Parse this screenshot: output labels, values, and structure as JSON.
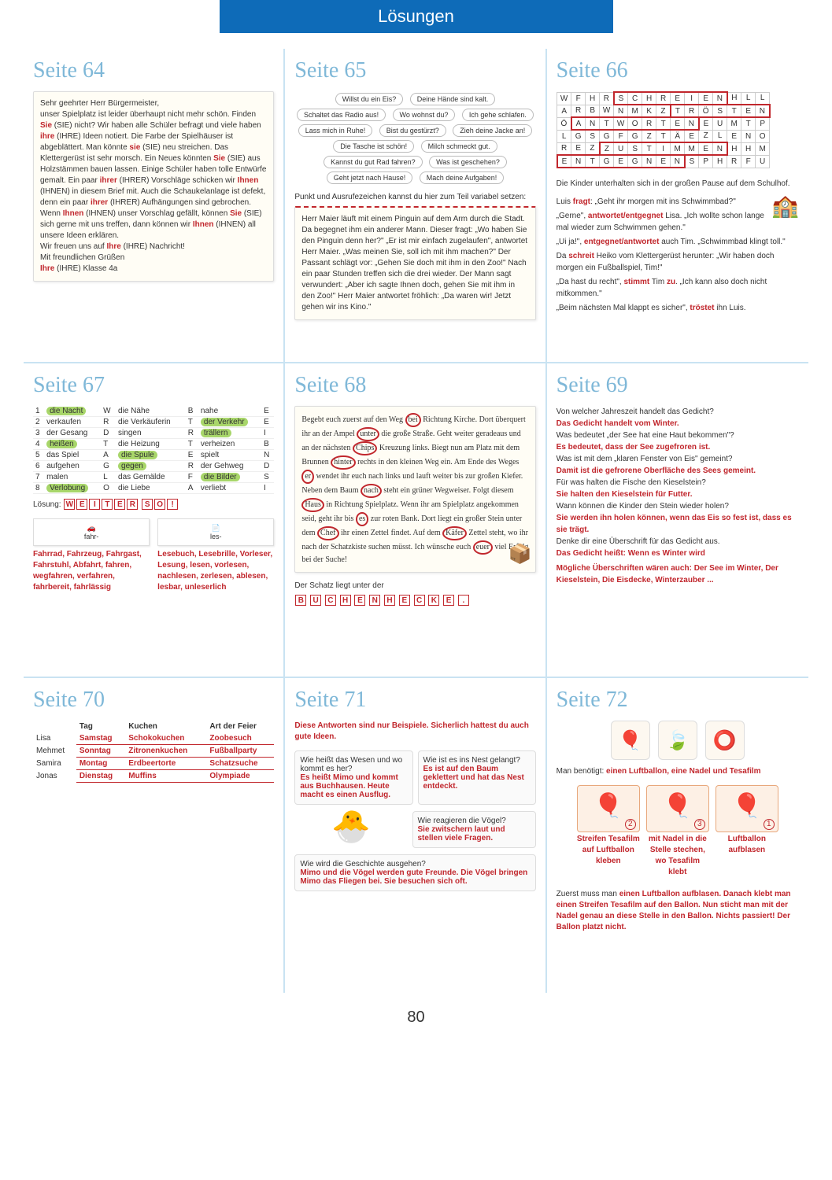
{
  "header": "Lösungen",
  "pageNum": "80",
  "p64": {
    "title": "Seite 64",
    "letter": "Sehr geehrter Herr Bürgermeister,\nunser Spielplatz ist leider überhaupt nicht mehr schön. Finden <r>Sie</r> (SIE) nicht? Wir haben alle Schüler befragt und viele haben <r>ihre</r> (IHRE) Ideen notiert. Die Farbe der Spielhäuser ist abgeblättert. Man könnte <r>sie</r> (SIE) neu streichen. Das Klettergerüst ist sehr morsch. Ein Neues könnten <r>Sie</r> (SIE) aus Holzstämmen bauen lassen. Einige Schüler haben tolle Entwürfe gemalt. Ein paar <r>ihrer</r> (IHRER) Vorschläge schicken wir <r>Ihnen</r> (IHNEN) in diesem Brief mit. Auch die Schaukelanlage ist defekt, denn ein paar <r>ihrer</r> (IHRER) Aufhängungen sind gebrochen. Wenn <r>Ihnen</r> (IHNEN) unser Vorschlag gefällt, können <r>Sie</r> (SIE) sich gerne mit uns treffen, dann können wir <r>Ihnen</r> (IHNEN) all unsere Ideen erklären.\nWir freuen uns auf <r>Ihre</r> (IHRE) Nachricht!\nMit freundlichen Grüßen\n<r>Ihre</r> (IHRE) Klasse 4a"
  },
  "p65": {
    "title": "Seite 65",
    "bubbles": [
      "Willst du ein Eis?",
      "Deine Hände sind kalt.",
      "Schaltet das Radio aus!",
      "Wo wohnst du?",
      "Ich gehe schlafen.",
      "Lass mich in Ruhe!",
      "Bist du gestürzt?",
      "Zieh deine Jacke an!",
      "Die Tasche ist schön!",
      "Milch schmeckt gut.",
      "Kannst du gut Rad fahren?",
      "Was ist geschehen?",
      "Geht jetzt nach Hause!",
      "Mach deine Aufgaben!"
    ],
    "hint": "Punkt und Ausrufezeichen kannst du hier zum Teil variabel setzen:",
    "story": "Herr Maier läuft mit einem Pinguin auf dem Arm durch die Stadt. Da begegnet ihm ein anderer Mann. Dieser fragt: „Wo haben Sie den Pinguin denn her?\" „Er ist mir einfach zugelaufen\", antwortet Herr Maier. „Was meinen Sie, soll ich mit ihm machen?\" Der Passant schlägt vor: „Gehen Sie doch mit ihm in den Zoo!\" Nach ein paar Stunden treffen sich die drei wieder. Der Mann sagt verwundert: „Aber ich sagte Ihnen doch, gehen Sie mit ihm in den Zoo!\" Herr Maier antwortet fröhlich: „Da waren wir! Jetzt gehen wir ins Kino.\""
  },
  "p66": {
    "title": "Seite 66",
    "grid": [
      [
        "W",
        "F",
        "H",
        "R",
        "S",
        "C",
        "H",
        "R",
        "E",
        "I",
        "E",
        "N",
        "H",
        "L",
        "L"
      ],
      [
        "A",
        "R",
        "B",
        "W",
        "N",
        "M",
        "K",
        "Z",
        "T",
        "R",
        "Ö",
        "S",
        "T",
        "E",
        "N"
      ],
      [
        "Ö",
        "A",
        "N",
        "T",
        "W",
        "O",
        "R",
        "T",
        "E",
        "N",
        "E",
        "U",
        "M",
        "T",
        "P"
      ],
      [
        "L",
        "G",
        "S",
        "G",
        "F",
        "G",
        "Z",
        "T",
        "Ä",
        "E",
        "Z",
        "L",
        "E",
        "N",
        "O"
      ],
      [
        "R",
        "E",
        "Z",
        "Z",
        "U",
        "S",
        "T",
        "I",
        "M",
        "M",
        "E",
        "N",
        "H",
        "H",
        "M"
      ],
      [
        "E",
        "N",
        "T",
        "G",
        "E",
        "G",
        "N",
        "E",
        "N",
        "S",
        "P",
        "H",
        "R",
        "F",
        "U"
      ]
    ],
    "intro": "Die Kinder unterhalten sich in der großen Pause auf dem Schulhof.",
    "dialog": [
      "Luis <r>fragt</r>: „Geht ihr morgen mit ins Schwimmbad?\"",
      "„Gerne\", <r>antwortet/entgegnet</r> Lisa. „Ich wollte schon lange mal wieder zum Schwimmen gehen.\"",
      "„Ui ja!\", <r>entgegnet/antwortet</r> auch Tim. „Schwimmbad klingt toll.\"",
      "Da <r>schreit</r> Heiko vom Klettergerüst herunter: „Wir haben doch morgen ein Fußballspiel, Tim!\"",
      "„Da hast du recht\", <r>stimmt</r> Tim <r>zu</r>. „Ich kann also doch nicht mitkommen.\"",
      "„Beim nächsten Mal klappt es sicher\", <r>tröstet</r> ihn Luis."
    ]
  },
  "p67": {
    "title": "Seite 67",
    "rows": [
      [
        "1",
        "die Nacht",
        "W",
        "die Nähe",
        "B",
        "nahe",
        "E"
      ],
      [
        "2",
        "verkaufen",
        "R",
        "die Verkäuferin",
        "T",
        "der Verkehr",
        "E"
      ],
      [
        "3",
        "der Gesang",
        "D",
        "singen",
        "R",
        "trällern",
        "I"
      ],
      [
        "4",
        "heißen",
        "T",
        "die Heizung",
        "T",
        "verheizen",
        "B"
      ],
      [
        "5",
        "das Spiel",
        "A",
        "die Spule",
        "E",
        "spielt",
        "N"
      ],
      [
        "6",
        "aufgehen",
        "G",
        "gegen",
        "R",
        "der Gehweg",
        "D"
      ],
      [
        "7",
        "malen",
        "L",
        "das Gemälde",
        "F",
        "die Bilder",
        "S"
      ],
      [
        "8",
        "Verlobung",
        "O",
        "die Liebe",
        "A",
        "verliebt",
        "I"
      ]
    ],
    "solLabel": "Lösung:",
    "sol": [
      "W",
      "E",
      "I",
      "T",
      "E",
      "R",
      "",
      "S",
      "O",
      "!"
    ],
    "card1Label": "fahr-",
    "card1": "Fahrrad, Fahrzeug, Fahrgast, Fahrstuhl, Abfahrt, fahren, wegfahren, verfahren, fahrbereit, fahrlässig",
    "card2Label": "les-",
    "card2": "Lesebuch, Lesebrille, Vorleser, Lesung, lesen, vorlesen, nachlesen, zerlesen, ablesen, lesbar, unleserlich"
  },
  "p68": {
    "title": "Seite 68",
    "text": "Begebt euch zuerst auf den Weg <o>bei</o> Richtung Kirche. Dort überquert ihr an der Ampel <o>unter</o> die große Straße. Geht weiter geradeaus und an der nächsten <o>Chips</o> Kreuzung links. Biegt nun am Platz mit dem Brunnen <o>hinter</o> rechts in den kleinen Weg ein. Am Ende des Weges <o>er</o> wendet ihr euch nach links und lauft weiter bis zur großen Kiefer. Neben dem Baum <o>nach</o> steht ein grüner Wegweiser. Folgt diesem <o>Haus</o> in Richtung Spielplatz. Wenn ihr am Spielplatz angekommen seid, geht ihr bis <o>es</o> zur roten Bank. Dort liegt ein großer Stein unter dem <o>Chef</o> ihr einen Zettel findet. Auf dem <o>Käfer</o> Zettel steht, wo ihr nach der Schatzkiste suchen müsst. Ich wünsche euch <o>euer</o> viel Erfolg bei der Suche!",
    "ansLabel": "Der Schatz liegt unter der",
    "ans": [
      "B",
      "U",
      "C",
      "H",
      "E",
      "N",
      "H",
      "E",
      "C",
      "K",
      "E",
      "."
    ]
  },
  "p69": {
    "title": "Seite 69",
    "qa": [
      {
        "q": "Von welcher Jahreszeit handelt das Gedicht?",
        "a": "Das Gedicht handelt vom Winter."
      },
      {
        "q": "Was bedeutet „der See hat eine Haut bekommen\"?",
        "a": "Es bedeutet, dass der See zugefroren ist."
      },
      {
        "q": "Was ist mit dem „klaren Fenster von Eis\" gemeint?",
        "a": "Damit ist die gefrorene Oberfläche des Sees gemeint."
      },
      {
        "q": "Für was halten die Fische den Kieselstein?",
        "a": "Sie halten den Kieselstein für Futter."
      },
      {
        "q": "Wann können die Kinder den Stein wieder holen?",
        "a": "Sie werden ihn holen können, wenn das Eis so fest ist, dass es sie trägt."
      },
      {
        "q": "Denke dir eine Überschrift für das Gedicht aus.",
        "a": "Das Gedicht heißt: Wenn es Winter wird"
      }
    ],
    "extra": "Mögliche Überschriften wären auch: Der See im Winter, Der Kieselstein, Die Eisdecke, Winterzauber ..."
  },
  "p70": {
    "title": "Seite 70",
    "headers": [
      "",
      "Tag",
      "Kuchen",
      "Art der Feier"
    ],
    "rows": [
      [
        "Lisa",
        "Samstag",
        "Schokokuchen",
        "Zoobesuch"
      ],
      [
        "Mehmet",
        "Sonntag",
        "Zitronenkuchen",
        "Fußballparty"
      ],
      [
        "Samira",
        "Montag",
        "Erdbeertorte",
        "Schatzsuche"
      ],
      [
        "Jonas",
        "Dienstag",
        "Muffins",
        "Olympiade"
      ]
    ]
  },
  "p71": {
    "title": "Seite 71",
    "intro": "Diese Antworten sind nur Beispiele. Sicherlich hattest du auch gute Ideen.",
    "box1q": "Wie heißt das Wesen und wo kommt es her?",
    "box1a": "Es heißt Mimo und kommt aus Buchhausen. Heute macht es einen Ausflug.",
    "box2q": "Wie ist es ins Nest gelangt?",
    "box2a": "Es ist auf den Baum geklettert und hat das Nest entdeckt.",
    "box3q": "Wie reagieren die Vögel?",
    "box3a": "Sie zwitschern laut und stellen viele Fragen.",
    "box4q": "Wie wird die Geschichte ausgehen?",
    "box4a": "Mimo und die Vögel werden gute Freunde. Die Vögel bringen Mimo das Fliegen bei. Sie besuchen sich oft."
  },
  "p72": {
    "title": "Seite 72",
    "need": "Man benötigt: <r>einen Luftballon, eine Nadel und Tesafilm</r>",
    "steps": [
      {
        "n": "2",
        "t": "Streifen Tesafilm auf Luftballon kleben"
      },
      {
        "n": "3",
        "t": "mit Nadel in die Stelle stechen, wo Tesafilm klebt"
      },
      {
        "n": "1",
        "t": "Luftballon aufblasen"
      }
    ],
    "final": "Zuerst muss man <r>einen Luftballon aufblasen. Danach klebt man einen Streifen Tesafilm auf den Ballon. Nun sticht man mit der Nadel genau an diese Stelle in den Ballon. Nichts passiert! Der Ballon platzt nicht.</r>"
  }
}
